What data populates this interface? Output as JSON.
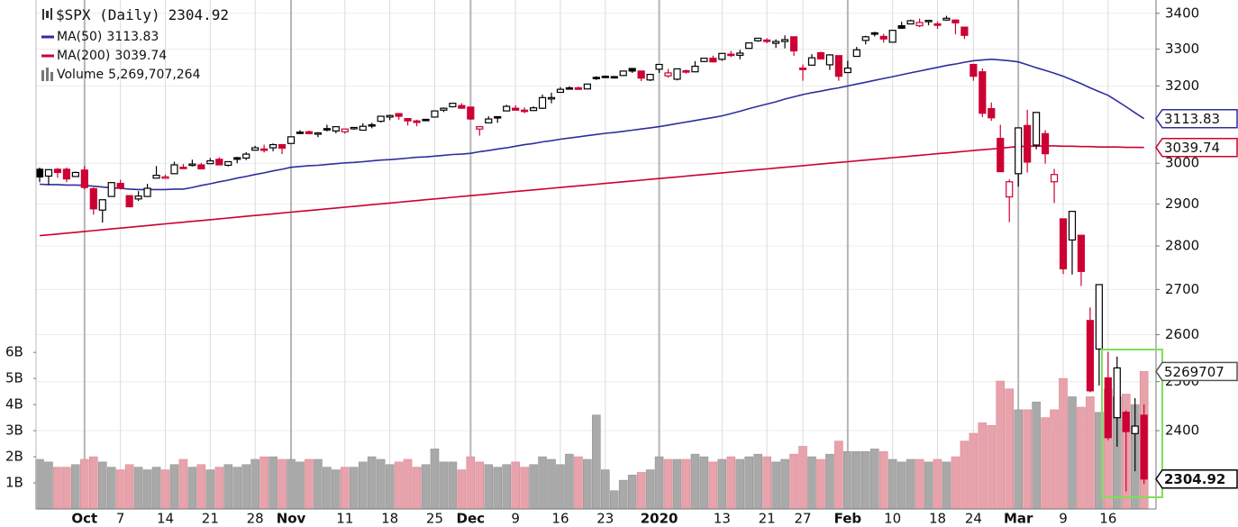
{
  "chart_data": {
    "type": "candlestick",
    "title": "$SPX (Daily)",
    "categories": [
      null,
      null,
      null,
      null,
      null,
      "Oct",
      null,
      null,
      null,
      "7",
      null,
      null,
      null,
      null,
      "14",
      null,
      null,
      null,
      null,
      "21",
      null,
      null,
      null,
      null,
      "28",
      null,
      null,
      null,
      "Nov",
      null,
      null,
      null,
      null,
      null,
      "11",
      null,
      null,
      null,
      null,
      "18",
      null,
      null,
      null,
      null,
      "25",
      null,
      null,
      null,
      "Dec",
      null,
      null,
      null,
      null,
      "9",
      null,
      null,
      null,
      null,
      "16",
      null,
      null,
      null,
      null,
      "23",
      null,
      null,
      null,
      null,
      null,
      "2020",
      null,
      null,
      null,
      null,
      null,
      null,
      "13",
      null,
      null,
      null,
      null,
      "21",
      null,
      null,
      null,
      "27",
      null,
      null,
      null,
      null,
      "Feb",
      null,
      null,
      null,
      null,
      "10",
      null,
      null,
      null,
      null,
      "18",
      null,
      null,
      null,
      "24",
      null,
      null,
      null,
      null,
      "Mar",
      null,
      null,
      null,
      null,
      "9",
      null,
      null,
      null,
      null,
      "16",
      null,
      null,
      null,
      null
    ],
    "open": [
      2985,
      2968,
      2985,
      2985,
      2967,
      2983,
      2937,
      2885,
      2918,
      2950,
      2920,
      2912,
      2918,
      2963,
      2965,
      2974,
      2990,
      2995,
      2996,
      2999,
      3010,
      2995,
      3014,
      3013,
      3033,
      3036,
      3039,
      3047,
      3050,
      3079,
      3080,
      3075,
      3088,
      3082,
      3080,
      3089,
      3084,
      3098,
      3107,
      3118,
      3127,
      3114,
      3108,
      3112,
      3118,
      3136,
      3145,
      3148,
      3144,
      3087,
      3103,
      3119,
      3134,
      3141,
      3136,
      3135,
      3141,
      3167,
      3183,
      3195,
      3195,
      3192,
      3223,
      3226,
      3225,
      3228,
      3247,
      3240,
      3216,
      3245,
      3227,
      3218,
      3241,
      3238,
      3266,
      3275,
      3272,
      3286,
      3283,
      3302,
      3323,
      3325,
      3316,
      3321,
      3334,
      3248,
      3256,
      3290,
      3257,
      3282,
      3236,
      3280,
      3324,
      3345,
      3335,
      3319,
      3365,
      3370,
      3365,
      3378,
      3370,
      3381,
      3381,
      3361,
      3258,
      3238,
      3140,
      3063,
      2917,
      2974,
      3096,
      3046,
      3075,
      2954,
      2864,
      2814,
      2825,
      2631,
      2569,
      2508,
      2426,
      2437,
      2394,
      2431
    ],
    "high": [
      2989,
      2985,
      2988,
      2989,
      2979,
      2993,
      2940,
      2911,
      2953,
      2959,
      2920,
      2931,
      2949,
      2993,
      2972,
      3004,
      2998,
      3009,
      3001,
      3013,
      3015,
      3005,
      3016,
      3028,
      3044,
      3047,
      3050,
      3047,
      3067,
      3084,
      3083,
      3079,
      3098,
      3094,
      3088,
      3092,
      3102,
      3103,
      3120,
      3124,
      3128,
      3114,
      3111,
      3113,
      3134,
      3143,
      3155,
      3154,
      3144,
      3094,
      3120,
      3120,
      3150,
      3149,
      3143,
      3146,
      3177,
      3182,
      3197,
      3199,
      3198,
      3206,
      3226,
      3228,
      3227,
      3240,
      3247,
      3240,
      3232,
      3258,
      3246,
      3247,
      3244,
      3267,
      3275,
      3282,
      3288,
      3295,
      3298,
      3317,
      3330,
      3330,
      3327,
      3338,
      3334,
      3258,
      3286,
      3293,
      3286,
      3282,
      3268,
      3306,
      3337,
      3348,
      3342,
      3353,
      3376,
      3382,
      3385,
      3381,
      3377,
      3393,
      3382,
      3361,
      3260,
      3247,
      3156,
      3098,
      2960,
      3091,
      3137,
      3131,
      3084,
      2986,
      2864,
      2882,
      2825,
      2660,
      2711,
      2563,
      2553,
      2441,
      2466,
      2453
    ],
    "low": [
      2953,
      2946,
      2964,
      2953,
      2967,
      2935,
      2874,
      2855,
      2918,
      2935,
      2892,
      2907,
      2917,
      2963,
      2962,
      2974,
      2986,
      2992,
      2985,
      2999,
      2996,
      2992,
      3000,
      3008,
      3033,
      3027,
      3030,
      3023,
      3050,
      3074,
      3075,
      3066,
      3081,
      3076,
      3075,
      3085,
      3083,
      3089,
      3104,
      3110,
      3111,
      3096,
      3094,
      3108,
      3117,
      3131,
      3143,
      3140,
      3110,
      3070,
      3102,
      3103,
      3134,
      3135,
      3128,
      3134,
      3139,
      3154,
      3183,
      3191,
      3191,
      3192,
      3216,
      3221,
      3220,
      3228,
      3235,
      3213,
      3213,
      3235,
      3222,
      3215,
      3233,
      3237,
      3264,
      3263,
      3268,
      3278,
      3272,
      3302,
      3320,
      3316,
      3303,
      3302,
      3281,
      3214,
      3256,
      3271,
      3243,
      3214,
      3235,
      3280,
      3313,
      3335,
      3318,
      3319,
      3356,
      3370,
      3361,
      3366,
      3356,
      3379,
      3341,
      3328,
      3214,
      3118,
      3108,
      2978,
      2856,
      2942,
      2977,
      3035,
      2999,
      2902,
      2735,
      2734,
      2708,
      2478,
      2492,
      2381,
      2368,
      2281,
      2320,
      2295
    ],
    "close": [
      2966,
      2984,
      2977,
      2961,
      2977,
      2940,
      2888,
      2910,
      2952,
      2938,
      2893,
      2919,
      2938,
      2970,
      2966,
      2996,
      2990,
      2998,
      2986,
      3006,
      2996,
      3004,
      3010,
      3023,
      3039,
      3036,
      3047,
      3038,
      3067,
      3078,
      3075,
      3077,
      3085,
      3093,
      3087,
      3091,
      3094,
      3097,
      3120,
      3122,
      3120,
      3108,
      3104,
      3110,
      3134,
      3141,
      3154,
      3141,
      3113,
      3093,
      3113,
      3117,
      3146,
      3136,
      3133,
      3142,
      3169,
      3169,
      3191,
      3192,
      3191,
      3205,
      3221,
      3224,
      3224,
      3240,
      3240,
      3221,
      3231,
      3258,
      3235,
      3246,
      3237,
      3253,
      3275,
      3265,
      3288,
      3283,
      3289,
      3317,
      3330,
      3321,
      3321,
      3326,
      3295,
      3244,
      3276,
      3273,
      3284,
      3226,
      3248,
      3298,
      3334,
      3345,
      3328,
      3352,
      3358,
      3379,
      3374,
      3380,
      3370,
      3386,
      3373,
      3338,
      3226,
      3128,
      3116,
      2979,
      2954,
      3090,
      3003,
      3130,
      3024,
      2972,
      2747,
      2882,
      2741,
      2481,
      2711,
      2386,
      2529,
      2398,
      2409,
      2304.92
    ],
    "up_color": "#000000",
    "down_color": "#cc0033",
    "log_scale": true,
    "ylim": [
      2248,
      3438
    ],
    "yticks": [
      2400,
      2500,
      2600,
      2700,
      2800,
      2900,
      3000,
      3200,
      3300,
      3400
    ],
    "grid": true,
    "series": [
      {
        "name": "MA(50)",
        "color": "#2e2e9e",
        "values": [
          2948,
          2947,
          2947,
          2946,
          2946,
          2945,
          2943,
          2941,
          2939,
          2938,
          2936,
          2935,
          2935,
          2935,
          2935,
          2936,
          2936,
          2940,
          2945,
          2949,
          2954,
          2958,
          2963,
          2967,
          2972,
          2976,
          2981,
          2985,
          2990,
          2992,
          2994,
          2995,
          2997,
          2999,
          3001,
          3002,
          3004,
          3006,
          3008,
          3009,
          3011,
          3013,
          3015,
          3016,
          3018,
          3020,
          3022,
          3023,
          3025,
          3029,
          3032,
          3036,
          3039,
          3043,
          3047,
          3050,
          3054,
          3057,
          3061,
          3064,
          3067,
          3070,
          3073,
          3076,
          3078,
          3081,
          3084,
          3087,
          3090,
          3093,
          3097,
          3101,
          3105,
          3109,
          3113,
          3117,
          3121,
          3127,
          3133,
          3140,
          3146,
          3152,
          3158,
          3165,
          3171,
          3177,
          3182,
          3186,
          3191,
          3195,
          3200,
          3205,
          3210,
          3215,
          3220,
          3225,
          3230,
          3235,
          3240,
          3245,
          3250,
          3255,
          3259,
          3264,
          3268,
          3270,
          3272,
          3270,
          3268,
          3265,
          3257,
          3249,
          3242,
          3234,
          3226,
          3216,
          3206,
          3195,
          3185,
          3175,
          3160,
          3145,
          3129,
          3113.83
        ]
      },
      {
        "name": "MA(200)",
        "color": "#cc0033",
        "values": [
          2824,
          2826,
          2828,
          2830,
          2832,
          2834,
          2836,
          2838,
          2840,
          2842,
          2844,
          2846,
          2848,
          2850,
          2852,
          2854,
          2856,
          2858,
          2860,
          2862,
          2864,
          2866,
          2868,
          2870,
          2872,
          2874,
          2876,
          2878,
          2880,
          2882,
          2884,
          2886,
          2888,
          2890,
          2892,
          2894,
          2896,
          2898,
          2900,
          2902,
          2904,
          2906,
          2908,
          2910,
          2912,
          2914,
          2916,
          2918,
          2920,
          2922,
          2924,
          2926,
          2928,
          2930,
          2932,
          2934,
          2936,
          2938,
          2940,
          2942,
          2944,
          2946,
          2948,
          2950,
          2952,
          2954,
          2956,
          2958,
          2960,
          2962,
          2964,
          2966,
          2968,
          2970,
          2972,
          2974,
          2976,
          2978,
          2980,
          2982,
          2984,
          2986,
          2988,
          2990,
          2992,
          2994,
          2996,
          2998,
          3000,
          3002,
          3004,
          3006,
          3008,
          3010,
          3012,
          3014,
          3016,
          3018,
          3020,
          3022,
          3024,
          3026,
          3028,
          3030,
          3032,
          3034,
          3036,
          3038,
          3040,
          3042,
          3043,
          3043,
          3044,
          3044,
          3043,
          3043,
          3042,
          3042,
          3041,
          3041,
          3041,
          3040,
          3040,
          3039.74
        ]
      }
    ],
    "volume": {
      "name": "Volume",
      "value_label": "5,269,707,264",
      "marker_label": "5269707",
      "up_color": "#a9a9a9",
      "down_color": "#e8a2ab",
      "values": [
        1900000000.0,
        1800000000.0,
        1600000000.0,
        1600000000.0,
        1700000000.0,
        1900000000.0,
        2000000000.0,
        1800000000.0,
        1600000000.0,
        1500000000.0,
        1700000000.0,
        1600000000.0,
        1500000000.0,
        1600000000.0,
        1500000000.0,
        1700000000.0,
        1900000000.0,
        1600000000.0,
        1700000000.0,
        1500000000.0,
        1600000000.0,
        1700000000.0,
        1600000000.0,
        1700000000.0,
        1900000000.0,
        2000000000.0,
        2000000000.0,
        1900000000.0,
        1900000000.0,
        1800000000.0,
        1900000000.0,
        1900000000.0,
        1600000000.0,
        1500000000.0,
        1600000000.0,
        1600000000.0,
        1800000000.0,
        2000000000.0,
        1900000000.0,
        1700000000.0,
        1800000000.0,
        1900000000.0,
        1600000000.0,
        1700000000.0,
        2300000000.0,
        1800000000.0,
        1800000000.0,
        1500000000.0,
        2000000000.0,
        1800000000.0,
        1700000000.0,
        1600000000.0,
        1700000000.0,
        1800000000.0,
        1600000000.0,
        1700000000.0,
        2000000000.0,
        1900000000.0,
        1700000000.0,
        2100000000.0,
        2000000000.0,
        1900000000.0,
        3600000000.0,
        1500000000.0,
        700000000.0,
        1100000000.0,
        1300000000.0,
        1400000000.0,
        1500000000.0,
        2000000000.0,
        1900000000.0,
        1900000000.0,
        1900000000.0,
        2100000000.0,
        2000000000.0,
        1800000000.0,
        1900000000.0,
        2000000000.0,
        1900000000.0,
        2000000000.0,
        2100000000.0,
        2000000000.0,
        1800000000.0,
        1900000000.0,
        2100000000.0,
        2400000000.0,
        2000000000.0,
        1900000000.0,
        2100000000.0,
        2600000000.0,
        2200000000.0,
        2200000000.0,
        2200000000.0,
        2300000000.0,
        2200000000.0,
        1900000000.0,
        1800000000.0,
        1900000000.0,
        1900000000.0,
        1800000000.0,
        1900000000.0,
        1800000000.0,
        2000000000.0,
        2600000000.0,
        2900000000.0,
        3300000000.0,
        3200000000.0,
        4900000000.0,
        4600000000.0,
        3800000000.0,
        3800000000.0,
        4100000000.0,
        3500000000.0,
        3800000000.0,
        5000000000.0,
        4300000000.0,
        3900000000.0,
        4300000000.0,
        3700000000.0,
        4600000000.0,
        4300000000.0,
        4400000000.0,
        4000000000.0,
        5269707264
      ],
      "y2lim": [
        0,
        19500000000
      ],
      "y2ticks": [
        {
          "value": 1000000000,
          "label": "1B"
        },
        {
          "value": 2000000000,
          "label": "2B"
        },
        {
          "value": 3000000000,
          "label": "3B"
        },
        {
          "value": 4000000000,
          "label": "4B"
        },
        {
          "value": 5000000000,
          "label": "5B"
        },
        {
          "value": 6000000000,
          "label": "6B"
        }
      ]
    }
  }
}
